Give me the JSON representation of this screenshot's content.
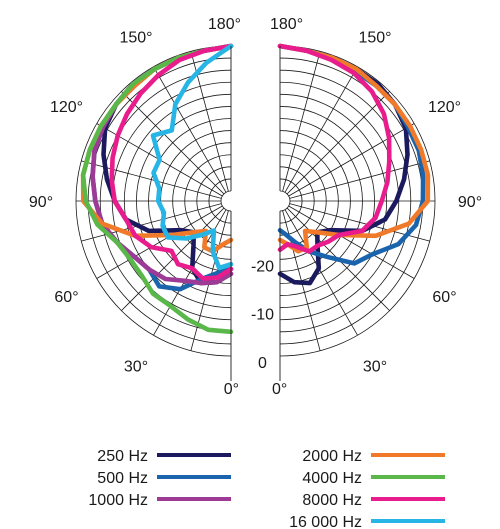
{
  "chart_data": {
    "type": "polar",
    "angle_labels_left": [
      {
        "deg": 180,
        "label": "180°"
      },
      {
        "deg": 150,
        "label": "150°"
      },
      {
        "deg": 120,
        "label": "120°"
      },
      {
        "deg": 90,
        "label": "90°"
      },
      {
        "deg": 60,
        "label": "60°"
      },
      {
        "deg": 30,
        "label": "30°"
      },
      {
        "deg": 0,
        "label": "0°"
      }
    ],
    "angle_labels_right": [
      {
        "deg": 180,
        "label": "180°"
      },
      {
        "deg": 150,
        "label": "150°"
      },
      {
        "deg": 120,
        "label": "120°"
      },
      {
        "deg": 90,
        "label": "90°"
      },
      {
        "deg": 60,
        "label": "60°"
      },
      {
        "deg": 30,
        "label": "30°"
      },
      {
        "deg": 0,
        "label": "0°"
      }
    ],
    "radial_ticks": [
      {
        "db": -20,
        "label": "-20"
      },
      {
        "db": -10,
        "label": "-10"
      },
      {
        "db": 0,
        "label": "0"
      }
    ],
    "rlim": [
      -30,
      0
    ],
    "grid_rings_db": [
      -27.5,
      -25,
      -22.5,
      -20,
      -17.5,
      -15,
      -12.5,
      -10,
      -7.5,
      -5,
      -2.5,
      0
    ],
    "grid_spoke_deg": [
      15,
      30,
      45,
      60,
      75,
      90,
      105,
      120,
      135,
      150,
      165
    ],
    "left_series": [
      {
        "name": "250 Hz",
        "color": "#1c1a5e",
        "points": [
          [
            0,
            -17
          ],
          [
            10,
            -15
          ],
          [
            20,
            -14
          ],
          [
            30,
            -16
          ],
          [
            40,
            -20
          ],
          [
            50,
            -22
          ],
          [
            60,
            -20
          ],
          [
            70,
            -14
          ],
          [
            80,
            -10
          ],
          [
            90,
            -8
          ],
          [
            100,
            -6
          ],
          [
            110,
            -4
          ],
          [
            120,
            -2
          ],
          [
            130,
            -1
          ],
          [
            140,
            -0.5
          ],
          [
            150,
            -0.5
          ],
          [
            160,
            -0.5
          ],
          [
            170,
            -0.5
          ],
          [
            180,
            0
          ]
        ]
      },
      {
        "name": "500 Hz",
        "color": "#1a63ad",
        "points": [
          [
            0,
            -18
          ],
          [
            10,
            -17
          ],
          [
            20,
            -15
          ],
          [
            30,
            -11
          ],
          [
            40,
            -9
          ],
          [
            50,
            -10
          ],
          [
            60,
            -9
          ],
          [
            70,
            -7
          ],
          [
            80,
            -5
          ],
          [
            90,
            -4
          ],
          [
            100,
            -3
          ],
          [
            110,
            -2
          ],
          [
            120,
            -1.5
          ],
          [
            130,
            -1
          ],
          [
            140,
            -0.5
          ],
          [
            150,
            -0.5
          ],
          [
            160,
            -0.5
          ],
          [
            170,
            -0.5
          ],
          [
            180,
            0
          ]
        ]
      },
      {
        "name": "1000 Hz",
        "color": "#9c3a96",
        "points": [
          [
            0,
            -17
          ],
          [
            10,
            -15
          ],
          [
            20,
            -14
          ],
          [
            30,
            -13
          ],
          [
            40,
            -11
          ],
          [
            50,
            -10
          ],
          [
            60,
            -9
          ],
          [
            70,
            -7
          ],
          [
            80,
            -5
          ],
          [
            90,
            -4
          ],
          [
            100,
            -3
          ],
          [
            110,
            -2
          ],
          [
            120,
            -1.5
          ],
          [
            130,
            -1
          ],
          [
            140,
            -0.5
          ],
          [
            150,
            -0.5
          ],
          [
            160,
            -0.5
          ],
          [
            170,
            -0.5
          ],
          [
            180,
            0
          ]
        ]
      },
      {
        "name": "2000 Hz",
        "color": "#f07a2a",
        "points": [
          [
            0,
            -24
          ],
          [
            10,
            -23
          ],
          [
            20,
            -21
          ],
          [
            30,
            -21
          ],
          [
            40,
            -24
          ],
          [
            50,
            -22
          ],
          [
            60,
            -18
          ],
          [
            70,
            -11
          ],
          [
            80,
            -5
          ],
          [
            90,
            -1.5
          ],
          [
            100,
            -1
          ],
          [
            110,
            -1
          ],
          [
            120,
            -1
          ],
          [
            130,
            -1
          ],
          [
            140,
            -1
          ],
          [
            150,
            -0.5
          ],
          [
            160,
            -0.5
          ],
          [
            170,
            -0.5
          ],
          [
            180,
            0
          ]
        ]
      },
      {
        "name": "4000 Hz",
        "color": "#5ab84a",
        "points": [
          [
            0,
            -5
          ],
          [
            10,
            -5
          ],
          [
            20,
            -6
          ],
          [
            30,
            -7
          ],
          [
            40,
            -7
          ],
          [
            50,
            -8
          ],
          [
            60,
            -8
          ],
          [
            70,
            -7
          ],
          [
            80,
            -4
          ],
          [
            90,
            -2
          ],
          [
            100,
            -1
          ],
          [
            110,
            -1
          ],
          [
            120,
            -1
          ],
          [
            130,
            -1
          ],
          [
            140,
            -0.5
          ],
          [
            150,
            -0.5
          ],
          [
            160,
            -0.5
          ],
          [
            170,
            -0.5
          ],
          [
            180,
            0
          ]
        ]
      },
      {
        "name": "8000 Hz",
        "color": "#e81c8c",
        "points": [
          [
            0,
            -18
          ],
          [
            10,
            -16
          ],
          [
            20,
            -15
          ],
          [
            30,
            -16
          ],
          [
            40,
            -15
          ],
          [
            50,
            -16
          ],
          [
            60,
            -13
          ],
          [
            70,
            -11
          ],
          [
            80,
            -10
          ],
          [
            90,
            -8
          ],
          [
            100,
            -7
          ],
          [
            110,
            -6
          ],
          [
            120,
            -5
          ],
          [
            130,
            -4
          ],
          [
            140,
            -3
          ],
          [
            150,
            -2
          ],
          [
            160,
            -1
          ],
          [
            170,
            -0.5
          ],
          [
            180,
            0
          ]
        ]
      },
      {
        "name": "16000 Hz",
        "color": "#27b5e6",
        "points": [
          [
            0,
            -19
          ],
          [
            10,
            -18
          ],
          [
            20,
            -21
          ],
          [
            30,
            -25
          ],
          [
            40,
            -23
          ],
          [
            50,
            -20
          ],
          [
            60,
            -17
          ],
          [
            70,
            -17
          ],
          [
            80,
            -18
          ],
          [
            90,
            -17
          ],
          [
            100,
            -17
          ],
          [
            110,
            -15
          ],
          [
            120,
            -15
          ],
          [
            130,
            -11
          ],
          [
            140,
            -13
          ],
          [
            150,
            -9
          ],
          [
            160,
            -6
          ],
          [
            170,
            -3
          ],
          [
            180,
            0
          ]
        ]
      }
    ],
    "right_series": [
      {
        "name": "250 Hz",
        "color": "#1c1a5e",
        "points": [
          [
            0,
            -17
          ],
          [
            10,
            -15
          ],
          [
            20,
            -14
          ],
          [
            30,
            -16
          ],
          [
            40,
            -20
          ],
          [
            50,
            -22
          ],
          [
            60,
            -20
          ],
          [
            70,
            -14
          ],
          [
            80,
            -10
          ],
          [
            90,
            -8
          ],
          [
            100,
            -6
          ],
          [
            110,
            -4
          ],
          [
            120,
            -2
          ],
          [
            130,
            -1
          ],
          [
            140,
            -0.5
          ],
          [
            150,
            -0.5
          ],
          [
            160,
            -0.5
          ],
          [
            170,
            -0.5
          ],
          [
            180,
            0
          ]
        ]
      },
      {
        "name": "500 Hz",
        "color": "#1a63ad",
        "points": [
          [
            0,
            -26
          ],
          [
            10,
            -25
          ],
          [
            20,
            -23
          ],
          [
            30,
            -20
          ],
          [
            40,
            -17
          ],
          [
            50,
            -12
          ],
          [
            60,
            -10
          ],
          [
            70,
            -6
          ],
          [
            80,
            -3.5
          ],
          [
            90,
            -2.5
          ],
          [
            100,
            -2
          ],
          [
            110,
            -1.5
          ],
          [
            120,
            -1.5
          ],
          [
            130,
            -1
          ],
          [
            140,
            -1
          ],
          [
            150,
            -1
          ],
          [
            160,
            -0.5
          ],
          [
            170,
            -0.5
          ],
          [
            180,
            0
          ]
        ]
      },
      {
        "name": "2000 Hz",
        "color": "#f07a2a",
        "points": [
          [
            0,
            -24
          ],
          [
            10,
            -23
          ],
          [
            20,
            -21
          ],
          [
            30,
            -21
          ],
          [
            40,
            -24
          ],
          [
            50,
            -22
          ],
          [
            60,
            -18
          ],
          [
            70,
            -11
          ],
          [
            80,
            -5
          ],
          [
            90,
            -1.5
          ],
          [
            100,
            -1
          ],
          [
            110,
            -1
          ],
          [
            120,
            -1
          ],
          [
            130,
            -1
          ],
          [
            140,
            -1
          ],
          [
            150,
            -0.5
          ],
          [
            160,
            -0.5
          ],
          [
            170,
            -0.5
          ],
          [
            180,
            0
          ]
        ]
      },
      {
        "name": "8000 Hz",
        "color": "#e81c8c",
        "points": [
          [
            0,
            -22
          ],
          [
            10,
            -23
          ],
          [
            20,
            -22
          ],
          [
            30,
            -20
          ],
          [
            40,
            -20
          ],
          [
            50,
            -19
          ],
          [
            60,
            -18
          ],
          [
            70,
            -14
          ],
          [
            80,
            -12
          ],
          [
            90,
            -11
          ],
          [
            100,
            -9.5
          ],
          [
            110,
            -8
          ],
          [
            120,
            -6
          ],
          [
            130,
            -4
          ],
          [
            140,
            -2.5
          ],
          [
            150,
            -1.5
          ],
          [
            160,
            -1
          ],
          [
            170,
            -0.5
          ],
          [
            180,
            0
          ]
        ]
      }
    ],
    "legend": [
      {
        "label": "250 Hz",
        "color": "#1c1a5e",
        "column": "left"
      },
      {
        "label": "500 Hz",
        "color": "#1a63ad",
        "column": "left"
      },
      {
        "label": "1000 Hz",
        "color": "#9c3a96",
        "column": "left"
      },
      {
        "label": "2000 Hz",
        "color": "#f07a2a",
        "column": "right"
      },
      {
        "label": "4000 Hz",
        "color": "#5ab84a",
        "column": "right"
      },
      {
        "label": "8000 Hz",
        "color": "#e81c8c",
        "column": "right"
      },
      {
        "label": "16 000 Hz",
        "color": "#27b5e6",
        "column": "right"
      }
    ],
    "legend_placement": "bottom"
  }
}
